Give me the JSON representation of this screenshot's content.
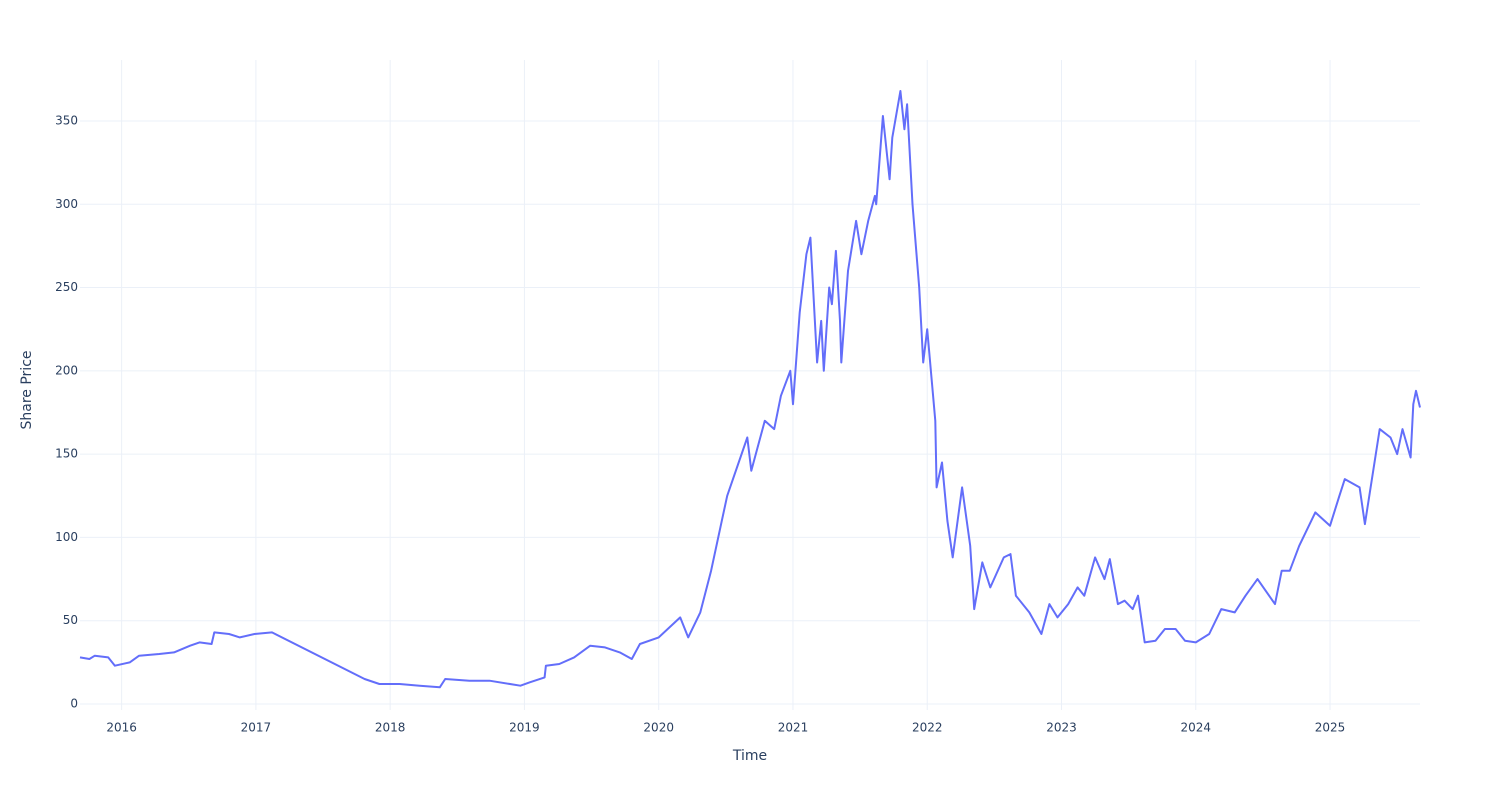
{
  "chart_data": {
    "type": "line",
    "x_label": "Time",
    "y_label": "Share Price",
    "color": "#636efa",
    "grid": true,
    "xlim": [
      2015.69,
      2025.67
    ],
    "xticks": [
      2016,
      2017,
      2018,
      2019,
      2020,
      2021,
      2022,
      2023,
      2024,
      2025
    ],
    "ylim": [
      -3.6,
      386.6
    ],
    "yticks": [
      0,
      50,
      100,
      150,
      200,
      250,
      300,
      350
    ],
    "x": [
      2015.69,
      2015.76,
      2015.8,
      2015.9,
      2015.95,
      2016.06,
      2016.13,
      2016.28,
      2016.39,
      2016.51,
      2016.58,
      2016.67,
      2016.69,
      2016.8,
      2016.88,
      2016.99,
      2017.12,
      2017.81,
      2017.92,
      2018.07,
      2018.22,
      2018.37,
      2018.41,
      2018.59,
      2018.74,
      2018.97,
      2019.04,
      2019.15,
      2019.16,
      2019.26,
      2019.37,
      2019.49,
      2019.6,
      2019.71,
      2019.8,
      2019.86,
      2020.0,
      2020.16,
      2020.22,
      2020.31,
      2020.39,
      2020.47,
      2020.51,
      2020.66,
      2020.69,
      2020.79,
      2020.86,
      2020.91,
      2020.98,
      2021.0,
      2021.05,
      2021.1,
      2021.13,
      2021.18,
      2021.21,
      2021.23,
      2021.27,
      2021.29,
      2021.32,
      2021.35,
      2021.36,
      2021.41,
      2021.47,
      2021.51,
      2021.56,
      2021.61,
      2021.62,
      2021.67,
      2021.72,
      2021.74,
      2021.8,
      2021.83,
      2021.85,
      2021.89,
      2021.94,
      2021.97,
      2022.0,
      2022.06,
      2022.07,
      2022.11,
      2022.15,
      2022.19,
      2022.26,
      2022.32,
      2022.35,
      2022.41,
      2022.47,
      2022.57,
      2022.62,
      2022.66,
      2022.76,
      2022.85,
      2022.91,
      2022.97,
      2023.05,
      2023.12,
      2023.17,
      2023.25,
      2023.32,
      2023.36,
      2023.42,
      2023.47,
      2023.53,
      2023.57,
      2023.62,
      2023.7,
      2023.77,
      2023.85,
      2023.92,
      2024.0,
      2024.1,
      2024.19,
      2024.29,
      2024.37,
      2024.46,
      2024.59,
      2024.64,
      2024.7,
      2024.77,
      2024.89,
      2025.0,
      2025.07,
      2025.11,
      2025.22,
      2025.26,
      2025.37,
      2025.45,
      2025.5,
      2025.54,
      2025.6,
      2025.62,
      2025.64,
      2025.67
    ],
    "values": [
      28,
      27,
      29,
      28,
      23,
      25,
      29,
      30,
      31,
      35,
      37,
      36,
      43,
      42,
      40,
      42,
      43,
      15,
      12,
      12,
      11,
      10,
      15,
      14,
      14,
      11,
      13,
      16,
      23,
      24,
      28,
      35,
      34,
      31,
      27,
      36,
      40,
      52,
      40,
      55,
      80,
      110,
      125,
      160,
      140,
      170,
      165,
      185,
      200,
      180,
      235,
      270,
      280,
      205,
      230,
      200,
      250,
      240,
      272,
      230,
      205,
      260,
      290,
      270,
      290,
      305,
      300,
      353,
      315,
      340,
      368,
      345,
      360,
      300,
      250,
      205,
      225,
      170,
      130,
      145,
      110,
      88,
      130,
      95,
      57,
      85,
      70,
      88,
      90,
      65,
      55,
      42,
      60,
      52,
      60,
      70,
      65,
      88,
      75,
      87,
      60,
      62,
      57,
      65,
      37,
      38,
      45,
      45,
      38,
      37,
      42,
      57,
      55,
      65,
      75,
      60,
      80,
      80,
      95,
      115,
      107,
      125,
      135,
      130,
      108,
      165,
      160,
      150,
      165,
      148,
      180,
      188,
      178
    ]
  }
}
